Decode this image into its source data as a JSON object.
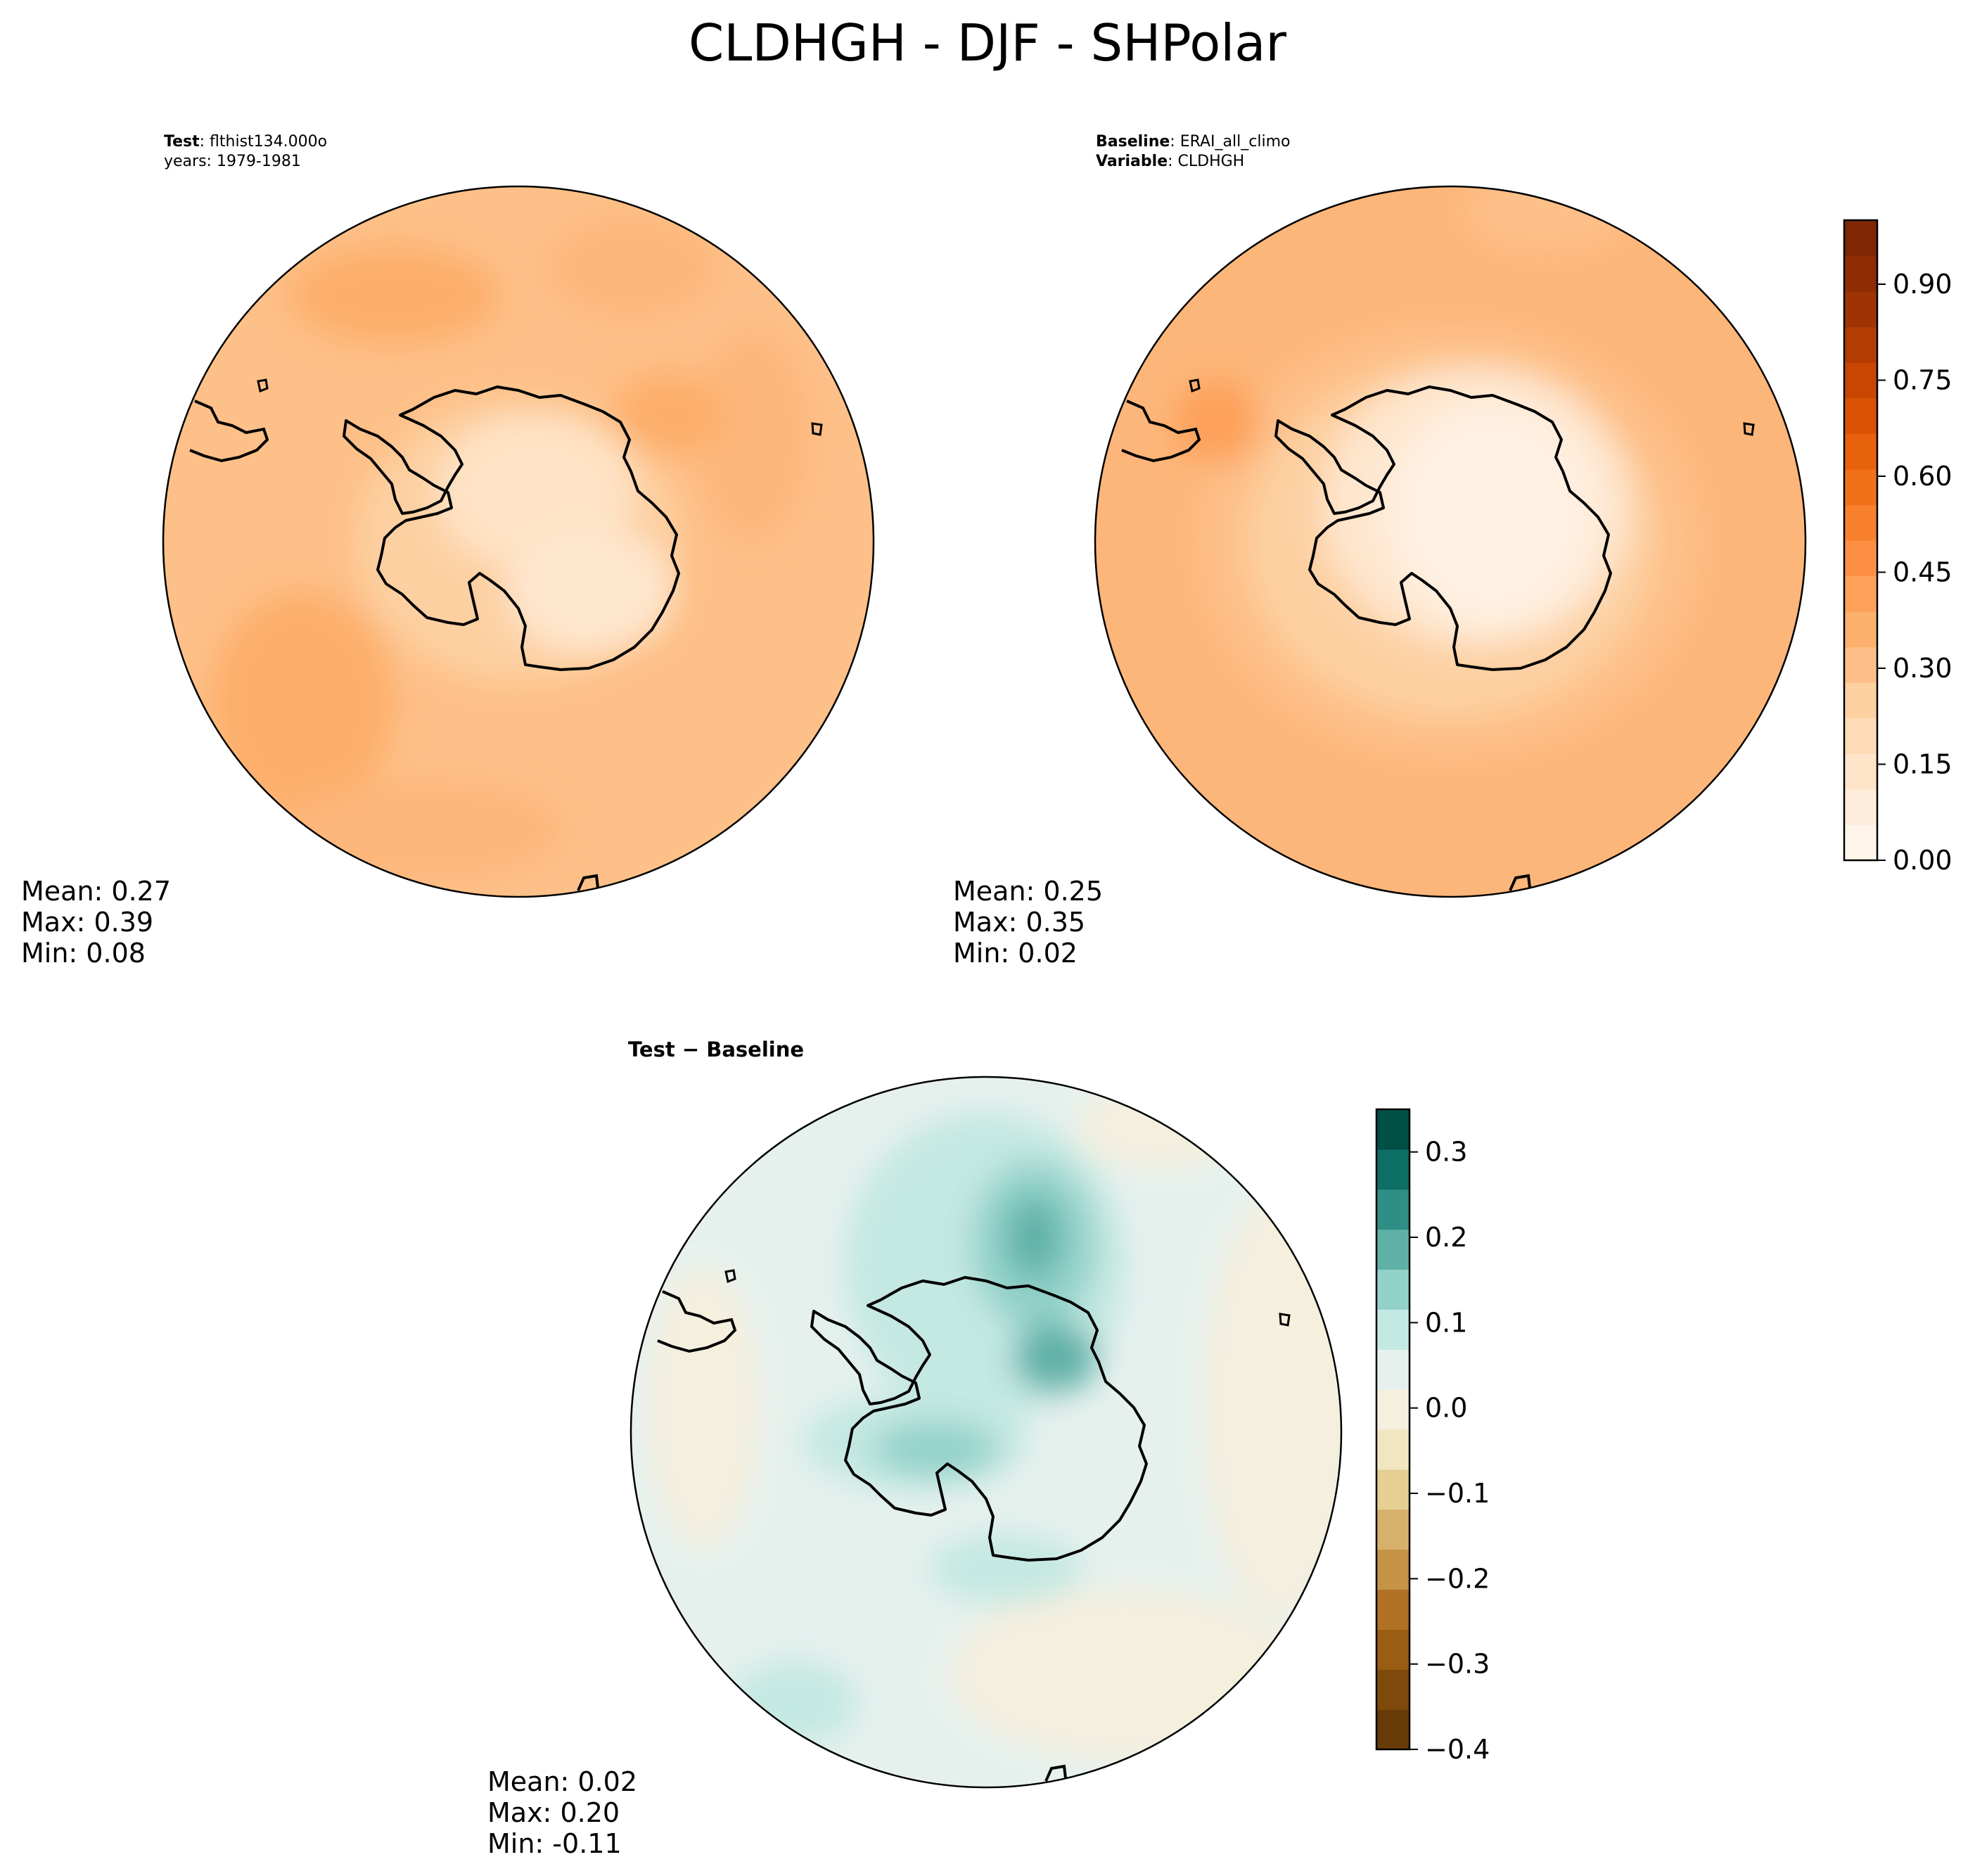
{
  "title": "CLDHGH - DJF - SHPolar",
  "panels": [
    {
      "id": "test",
      "info": [
        {
          "key": "Test",
          "sep": ": ",
          "value": "flthist134.000o"
        },
        {
          "key": "",
          "sep": "",
          "value": "years: 1979-1981"
        }
      ],
      "stats": {
        "mean": "Mean:  0.27",
        "max": "Max:  0.39",
        "min": "Min:  0.08"
      }
    },
    {
      "id": "baseline",
      "info": [
        {
          "key": "Baseline",
          "sep": ": ",
          "value": "ERAI_all_climo"
        },
        {
          "key": "Variable",
          "sep": ": ",
          "value": "CLDHGH"
        }
      ],
      "stats": {
        "mean": "Mean:  0.25",
        "max": "Max:  0.35",
        "min": "Min:  0.02"
      }
    },
    {
      "id": "diff",
      "info": [
        {
          "key": "Test − Baseline",
          "sep": "",
          "value": ""
        }
      ],
      "stats": {
        "mean": "Mean:  0.02",
        "max": "Max:  0.20",
        "min": "Min: -0.11"
      }
    }
  ],
  "chart_data": [
    {
      "type": "heatmap",
      "projection": "south-polar-stereographic",
      "panel": "test",
      "variable": "CLDHGH",
      "stats": {
        "mean": 0.27,
        "max": 0.39,
        "min": 0.08
      },
      "colormap": "Oranges",
      "color_range": [
        0.0,
        1.0
      ]
    },
    {
      "type": "heatmap",
      "projection": "south-polar-stereographic",
      "panel": "baseline",
      "variable": "CLDHGH",
      "stats": {
        "mean": 0.25,
        "max": 0.35,
        "min": 0.02
      },
      "colorbar": {
        "colormap": "Oranges",
        "range": [
          0.0,
          1.0
        ],
        "tick_values": [
          0.0,
          0.15,
          0.3,
          0.45,
          0.6,
          0.75,
          0.9
        ],
        "tick_labels": [
          "0.00",
          "0.15",
          "0.30",
          "0.45",
          "0.60",
          "0.75",
          "0.90"
        ],
        "colors": [
          "#fff5eb",
          "#ffeddb",
          "#fee5ca",
          "#fedcb8",
          "#fdd0a2",
          "#fdc088",
          "#fdb06e",
          "#fda05a",
          "#fd8f44",
          "#f9802d",
          "#f3701b",
          "#e8610c",
          "#db5205",
          "#c94602",
          "#b33c02",
          "#9f3303",
          "#8e2d04",
          "#7f2704"
        ]
      }
    },
    {
      "type": "heatmap",
      "projection": "south-polar-stereographic",
      "panel": "diff",
      "variable": "CLDHGH",
      "stats": {
        "mean": 0.02,
        "max": 0.2,
        "min": -0.11
      },
      "colorbar": {
        "colormap": "BrBG",
        "range": [
          -0.4,
          0.35
        ],
        "tick_values": [
          -0.4,
          -0.3,
          -0.2,
          -0.1,
          0.0,
          0.1,
          0.2,
          0.3
        ],
        "tick_labels": [
          "−0.4",
          "−0.3",
          "−0.2",
          "−0.1",
          "0.0",
          "0.1",
          "0.2",
          "0.3"
        ],
        "colors": [
          "#673a07",
          "#7e4a0c",
          "#995d13",
          "#b17124",
          "#c49345",
          "#d7b06c",
          "#e5cf92",
          "#f2e5c1",
          "#f5efde",
          "#e6f1ee",
          "#c4e8e2",
          "#93d2c9",
          "#5fb1a7",
          "#2f8e86",
          "#0e6f67",
          "#005046"
        ]
      }
    }
  ]
}
